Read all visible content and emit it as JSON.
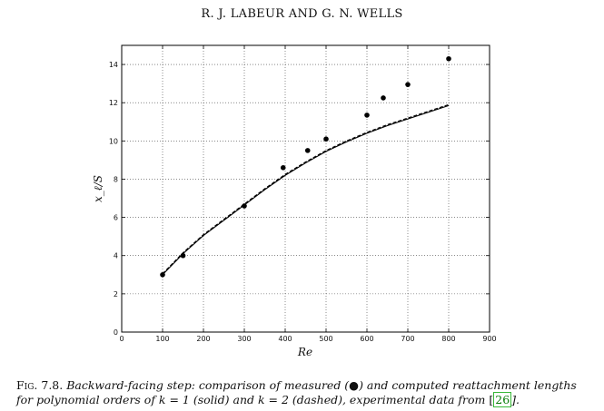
{
  "header": {
    "running_head": "R. J. LABEUR AND G. N. WELLS"
  },
  "caption": {
    "fig_label": "Fig. 7.8.",
    "text_part1": " Backward-facing step: comparison of measured (●) and computed reattachment lengths for polynomial orders of k = 1 (solid) and k = 2 (dashed), experimental data from ",
    "ref": "26",
    "text_part2": "]."
  },
  "chart_data": {
    "type": "line",
    "xlabel": "Re",
    "ylabel": "x_ℓ/S",
    "xlim": [
      0,
      900
    ],
    "ylim": [
      0,
      15
    ],
    "xticks": [
      0,
      100,
      200,
      300,
      400,
      500,
      600,
      700,
      800,
      900
    ],
    "yticks": [
      0,
      2,
      4,
      6,
      8,
      10,
      12,
      14
    ],
    "grid": true,
    "series": [
      {
        "style": "solid",
        "color": "#000000",
        "x": [
          100,
          150,
          200,
          250,
          300,
          350,
          400,
          450,
          500,
          550,
          600,
          650,
          700,
          750,
          800
        ],
        "y": [
          3.0,
          4.1,
          5.05,
          5.85,
          6.65,
          7.45,
          8.2,
          8.85,
          9.45,
          9.95,
          10.4,
          10.8,
          11.15,
          11.5,
          11.85
        ]
      },
      {
        "style": "dashed",
        "color": "#000000",
        "x": [
          100,
          150,
          200,
          250,
          300,
          350,
          400,
          450,
          500,
          550,
          600,
          650,
          700,
          750,
          800
        ],
        "y": [
          3.05,
          4.15,
          5.1,
          5.9,
          6.7,
          7.5,
          8.25,
          8.9,
          9.5,
          10.0,
          10.45,
          10.85,
          11.2,
          11.55,
          11.9
        ]
      },
      {
        "style": "markers",
        "color": "#000000",
        "x": [
          100,
          150,
          300,
          395,
          455,
          500,
          600,
          640,
          700,
          800
        ],
        "y": [
          3.0,
          4.0,
          6.6,
          8.6,
          9.5,
          10.1,
          11.35,
          12.25,
          12.95,
          14.3
        ]
      }
    ]
  }
}
